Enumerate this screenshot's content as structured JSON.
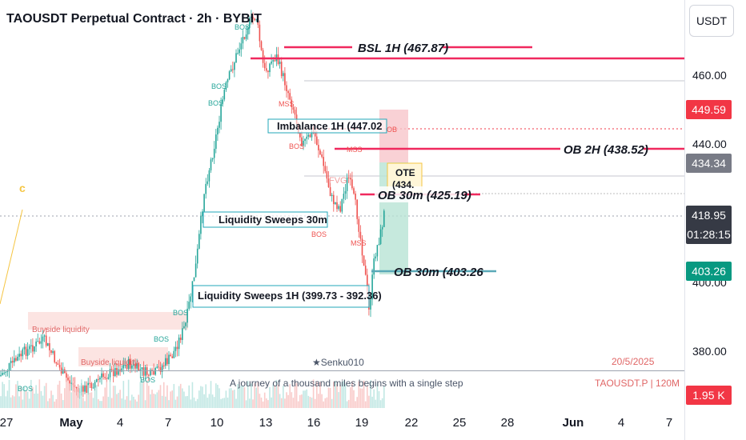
{
  "header": {
    "title": "TAOUSDT Perpetual Contract · 2h · BYBIT",
    "currency_button": "USDT"
  },
  "price_scale": {
    "ticks": [
      "460.00",
      "440.00",
      "400.00",
      "380.00"
    ]
  },
  "price_tags": [
    {
      "label": "449.59",
      "color": "#f23645"
    },
    {
      "label": "434.34",
      "color": "#787b86"
    },
    {
      "label": "418.95",
      "sub": "01:28:15",
      "color": "#363a45"
    },
    {
      "label": "403.26",
      "color": "#089981"
    }
  ],
  "volume_tag": {
    "label": "1.95 K",
    "color": "#f23645"
  },
  "time_axis": {
    "ticks": [
      {
        "label": "27",
        "bold": false
      },
      {
        "label": "May",
        "bold": true
      },
      {
        "label": "4",
        "bold": false
      },
      {
        "label": "7",
        "bold": false
      },
      {
        "label": "10",
        "bold": false
      },
      {
        "label": "13",
        "bold": false
      },
      {
        "label": "16",
        "bold": false
      },
      {
        "label": "19",
        "bold": false
      },
      {
        "label": "22",
        "bold": false
      },
      {
        "label": "25",
        "bold": false
      },
      {
        "label": "28",
        "bold": false
      },
      {
        "label": "Jun",
        "bold": true
      },
      {
        "label": "4",
        "bold": false
      },
      {
        "label": "7",
        "bold": false
      }
    ]
  },
  "annotations": {
    "bsl": "BSL 1H (467.87)",
    "ob2h": "OB 2H (438.52)",
    "ob30_upper": "OB 30m (425.19)",
    "ob30_lower": "OB 30m (403.26",
    "imbalance": "Imbalance 1H (447.02",
    "sweeps30": "Liquidity Sweeps 30m",
    "sweeps1h": "Liquidity Sweeps 1H (399.73 - 392.36)",
    "ote_line1": "OTE",
    "ote_line2": "(434.",
    "buyside1": "Buyside liquidity",
    "buyside2": "Buyside liquidity",
    "bos": "BOS",
    "mss": "MSS",
    "fvg": "FVG",
    "ob_small": "OB",
    "c_label": "c"
  },
  "footer": {
    "author": "★Senku010",
    "quote": "A journey of a thousand miles begins with a single step",
    "date": "20/5/2025",
    "symbol": "TAOUSDT.P | 120M"
  },
  "colors": {
    "up": "#26a69a",
    "down": "#ef5350",
    "level_line": "#f0295e",
    "sweep_box": "#22a7b8",
    "ob_line": "#5aa9b8"
  },
  "chart_data": {
    "type": "candlestick",
    "title": "TAOUSDT Perpetual Contract · 2h · BYBIT",
    "price_axis_ticks": [
      380,
      400,
      440,
      460
    ],
    "last_price": 418.95,
    "countdown": "01:28:15",
    "levels": [
      {
        "name": "BSL 1H",
        "price": 467.87
      },
      {
        "name": "Imbalance 1H",
        "price": 447.02
      },
      {
        "name": "OB 2H",
        "price": 438.52
      },
      {
        "name": "OB 30m",
        "price": 425.19
      },
      {
        "name": "OB 30m",
        "price": 403.26
      },
      {
        "name": "Liquidity Sweeps 1H",
        "range": [
          392.36,
          399.73
        ]
      }
    ],
    "scale_labels": [
      449.59,
      434.34,
      418.95,
      403.26
    ],
    "volume_last": "1.95 K",
    "x_ticks": [
      "27",
      "May",
      "4",
      "7",
      "10",
      "13",
      "16",
      "19",
      "22",
      "25",
      "28",
      "Jun",
      "4",
      "7"
    ]
  }
}
